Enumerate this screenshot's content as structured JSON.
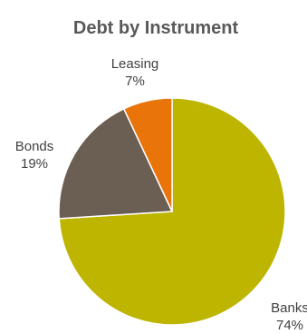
{
  "chart_data": {
    "type": "pie",
    "title": "Debt by Instrument",
    "slices": [
      {
        "label": "Banks",
        "value": 74,
        "display": "74%",
        "color": "#BDB500"
      },
      {
        "label": "Bonds",
        "value": 19,
        "display": "19%",
        "color": "#6B5E52"
      },
      {
        "label": "Leasing",
        "value": 7,
        "display": "7%",
        "color": "#E8740A"
      }
    ],
    "start": "12 o'clock",
    "direction": "clockwise",
    "legend": "none",
    "labels": "outside, name above percentage"
  }
}
